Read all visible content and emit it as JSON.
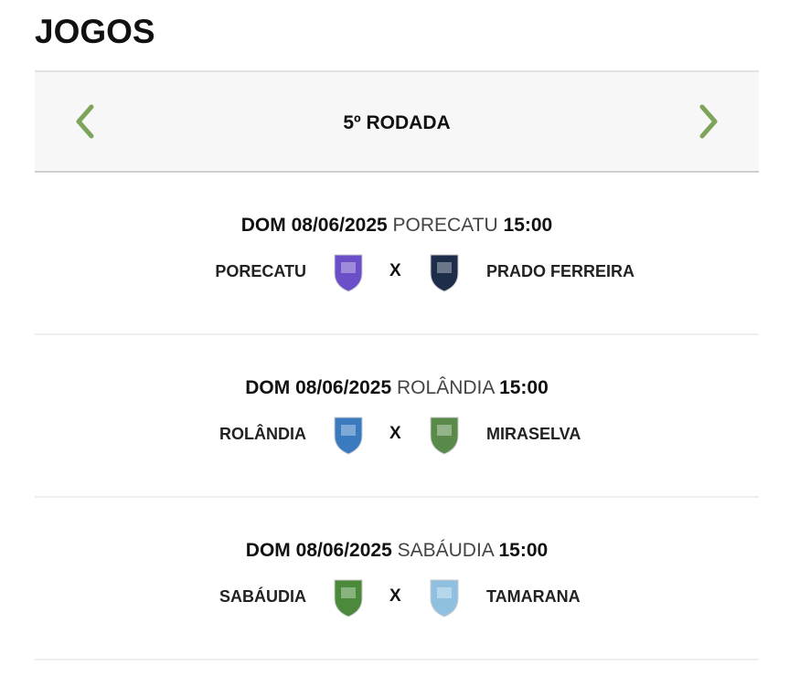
{
  "title": "JOGOS",
  "round": {
    "label": "5º RODADA",
    "prev_icon": "chevron-left-icon",
    "next_icon": "chevron-right-icon",
    "accent": "#7ea35a"
  },
  "matches": [
    {
      "day": "DOM",
      "date": "08/06/2025",
      "venue": "PORECATU",
      "time": "15:00",
      "home": "PORECATU",
      "away": "PRADO FERREIRA",
      "vs": "X",
      "home_color": "#6a4fc8",
      "away_color": "#1e2d4a"
    },
    {
      "day": "DOM",
      "date": "08/06/2025",
      "venue": "ROLÂNDIA",
      "time": "15:00",
      "home": "ROLÂNDIA",
      "away": "MIRASELVA",
      "vs": "X",
      "home_color": "#3a7bc0",
      "away_color": "#5a8a4a"
    },
    {
      "day": "DOM",
      "date": "08/06/2025",
      "venue": "SABÁUDIA",
      "time": "15:00",
      "home": "SABÁUDIA",
      "away": "TAMARANA",
      "vs": "X",
      "home_color": "#4a8a3a",
      "away_color": "#8fc0e0"
    }
  ]
}
